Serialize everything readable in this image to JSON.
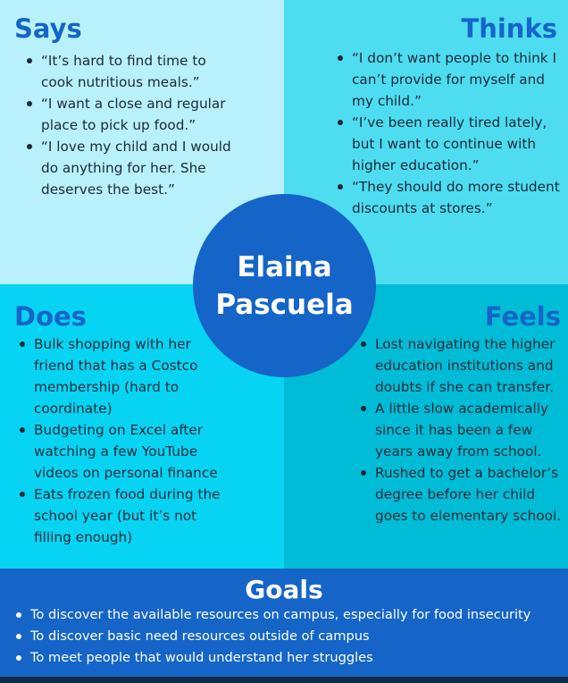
{
  "persona": {
    "first_name": "Elaina",
    "last_name": "Pascuela"
  },
  "says": {
    "title": "Says",
    "items": [
      "“It’s hard to find time to cook nutritious meals.”",
      "“I want a close and regular place to pick up food.”",
      "“I love my child and I would do anything for her. She deserves the best.”"
    ]
  },
  "thinks": {
    "title": "Thinks",
    "items": [
      "“I don’t want people to think I can’t provide for myself and my child.”",
      "“I’ve been really tired lately, but I want to continue with higher education.”",
      "“They should do more student discounts at stores.”"
    ]
  },
  "does": {
    "title": "Does",
    "items": [
      "Bulk shopping with her friend that has a Costco membership (hard to coordinate)",
      "Budgeting on Excel after watching a few YouTube videos on personal finance",
      "Eats frozen food during the school year (but it’s not filling enough)"
    ]
  },
  "feels": {
    "title": "Feels",
    "items": [
      "Lost navigating the higher education institutions and doubts if she can transfer.",
      "A little slow academically since it has been a few years away from school.",
      "Rushed to get a bachelor’s degree before her child goes to elementary school."
    ]
  },
  "goals": {
    "title": "Goals",
    "items": [
      "To discover the available resources on campus, especially for food insecurity",
      "To discover basic need resources outside of campus",
      "To meet people that would understand her struggles"
    ]
  },
  "colors": {
    "says_bg": "#b8f1fb",
    "thinks_bg": "#4edcf0",
    "does_bg": "#07d4f3",
    "feels_bg": "#00bcd6",
    "accent_blue": "#1565c8"
  }
}
